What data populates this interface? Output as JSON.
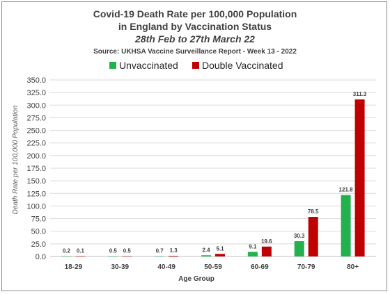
{
  "chart_data": {
    "type": "bar",
    "title": "Covid-19 Death Rate per 100,000 Population",
    "title_line2": "in England by Vaccination Status",
    "subtitle": "28th Feb to 27th March 22",
    "source": "Source: UKHSA Vaccine Surveillance Report - Week 13 - 2022",
    "xlabel": "Age Group",
    "ylabel": "Death Rate per 100,000 Population",
    "ylim": [
      0,
      350
    ],
    "ytick_step": 25,
    "ytick_labels": [
      "0.0",
      "25.0",
      "50.0",
      "75.0",
      "100.0",
      "125.0",
      "150.0",
      "175.0",
      "200.0",
      "225.0",
      "250.0",
      "275.0",
      "300.0",
      "325.0",
      "350.0"
    ],
    "grid": true,
    "legend_position": "top-center",
    "categories": [
      "18-29",
      "30-39",
      "40-49",
      "50-59",
      "60-69",
      "70-79",
      "80+"
    ],
    "series": [
      {
        "name": "Unvaccinated",
        "color": "#22b14c",
        "values": [
          0.2,
          0.5,
          0.7,
          2.4,
          9.1,
          30.3,
          121.8
        ],
        "labels": [
          "0.2",
          "0.5",
          "0.7",
          "2.4",
          "9.1",
          "30.3",
          "121.8"
        ]
      },
      {
        "name": "Double Vaccinated",
        "color": "#c00000",
        "values": [
          0.1,
          0.5,
          1.3,
          5.1,
          19.6,
          78.5,
          311.3
        ],
        "labels": [
          "0.1",
          "0.5",
          "1.3",
          "5.1",
          "19.6",
          "78.5",
          "311.3"
        ]
      }
    ]
  }
}
